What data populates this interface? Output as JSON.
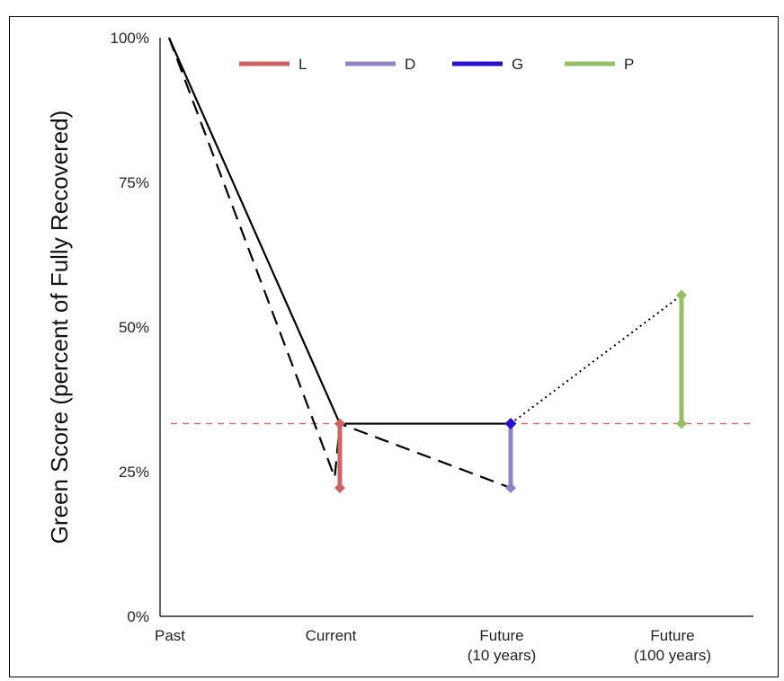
{
  "chart_data": {
    "type": "line",
    "title": "",
    "xlabel": "",
    "ylabel": "Green Score (percent of Fully Recovered)",
    "categories": [
      "Past",
      "Current",
      "Future\n(10 years)",
      "Future\n(100 years)"
    ],
    "yticks": [
      "0%",
      "25%",
      "50%",
      "75%",
      "100%"
    ],
    "ylim": [
      0,
      100
    ],
    "reference_line": {
      "value": 33.3,
      "style": "dashed",
      "color": "#e8615c"
    },
    "lines": [
      {
        "style": "solid",
        "color": "#000000",
        "points": [
          [
            0,
            100
          ],
          [
            1,
            33.3
          ],
          [
            2,
            33.3
          ]
        ]
      },
      {
        "style": "dashed",
        "color": "#000000",
        "points": [
          [
            0,
            100
          ],
          [
            0.97,
            24
          ],
          [
            1,
            33.3
          ],
          [
            2,
            22.2
          ]
        ]
      },
      {
        "style": "dotted",
        "color": "#000000",
        "points": [
          [
            2,
            33.3
          ],
          [
            3,
            55.5
          ]
        ]
      }
    ],
    "series": [
      {
        "name": "L",
        "color": "#cd6464",
        "x": 1,
        "from": 33.3,
        "to": 22.2
      },
      {
        "name": "D",
        "color": "#9183c8",
        "x": 2,
        "from": 33.3,
        "to": 22.2
      },
      {
        "name": "G",
        "color": "#2810d2",
        "x": 2,
        "from": 33.3,
        "to": 33.3
      },
      {
        "name": "P",
        "color": "#96be64",
        "x": 3,
        "from": 33.3,
        "to": 55.5
      }
    ],
    "legend_placement": "top-center",
    "grid": false
  }
}
